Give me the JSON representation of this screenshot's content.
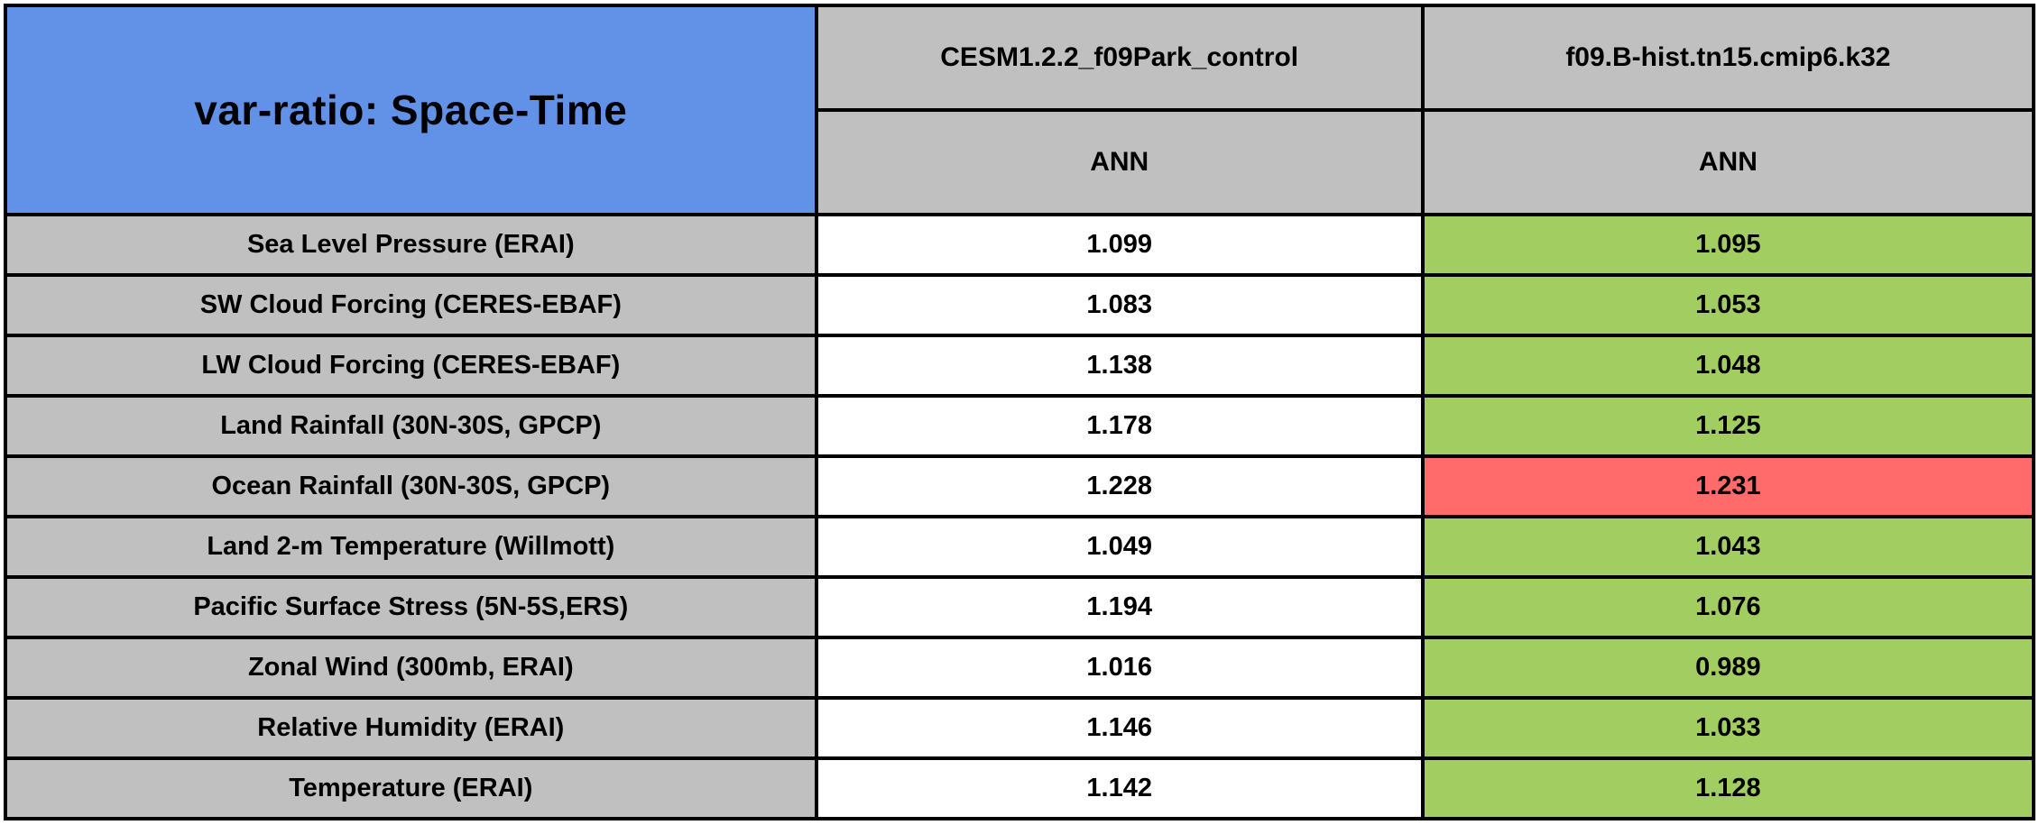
{
  "title": "var-ratio: Space-Time",
  "colors": {
    "title_bg": "#6292E8",
    "header_bg": "#C0C0C0",
    "label_bg": "#C0C0C0",
    "control_bg": "#FFFFFF",
    "better": "#A2CD60",
    "worse": "#FF6B6B",
    "border": "#000000"
  },
  "chart_data": {
    "type": "table",
    "title": "var-ratio: Space-Time",
    "columns": [
      {
        "model": "CESM1.2.2_f09Park_control",
        "season": "ANN"
      },
      {
        "model": "f09.B-hist.tn15.cmip6.k32",
        "season": "ANN"
      }
    ],
    "rows": [
      {
        "label": "Sea Level Pressure (ERAI)",
        "control": 1.099,
        "experiment": 1.095,
        "experiment_color": "#A2CD60"
      },
      {
        "label": "SW Cloud Forcing (CERES-EBAF)",
        "control": 1.083,
        "experiment": 1.053,
        "experiment_color": "#A2CD60"
      },
      {
        "label": "LW Cloud Forcing (CERES-EBAF)",
        "control": 1.138,
        "experiment": 1.048,
        "experiment_color": "#A2CD60"
      },
      {
        "label": "Land Rainfall (30N-30S, GPCP)",
        "control": 1.178,
        "experiment": 1.125,
        "experiment_color": "#A2CD60"
      },
      {
        "label": "Ocean Rainfall (30N-30S, GPCP)",
        "control": 1.228,
        "experiment": 1.231,
        "experiment_color": "#FF6B6B"
      },
      {
        "label": "Land 2-m Temperature (Willmott)",
        "control": 1.049,
        "experiment": 1.043,
        "experiment_color": "#A2CD60"
      },
      {
        "label": "Pacific Surface Stress (5N-5S,ERS)",
        "control": 1.194,
        "experiment": 1.076,
        "experiment_color": "#A2CD60"
      },
      {
        "label": "Zonal Wind (300mb, ERAI)",
        "control": 1.016,
        "experiment": 0.989,
        "experiment_color": "#A2CD60"
      },
      {
        "label": "Relative Humidity (ERAI)",
        "control": 1.146,
        "experiment": 1.033,
        "experiment_color": "#A2CD60"
      },
      {
        "label": "Temperature (ERAI)",
        "control": 1.142,
        "experiment": 1.128,
        "experiment_color": "#A2CD60"
      }
    ]
  }
}
